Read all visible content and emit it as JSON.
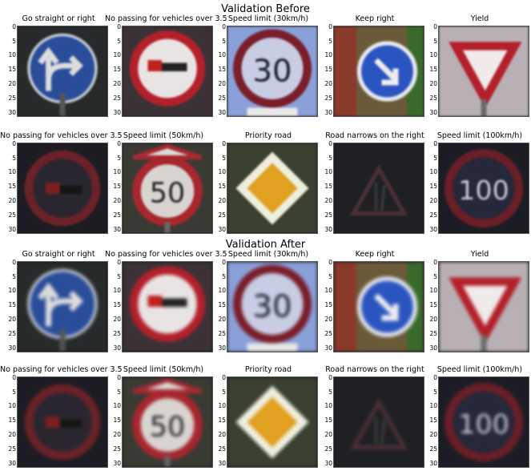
{
  "sections": [
    {
      "title": "Validation Before",
      "rows": [
        [
          "Go straight or right",
          "No passing for vehicles over 3.5",
          "Speed limit (30km/h)",
          "Keep right",
          "Yield"
        ],
        [
          "No passing for vehicles over 3.5",
          "Speed limit (50km/h)",
          "Priority road",
          "Road narrows on the right",
          "Speed limit (100km/h)"
        ]
      ]
    },
    {
      "title": "Validation After",
      "rows": [
        [
          "Go straight or right",
          "No passing for vehicles over 3.5",
          "Speed limit (30km/h)",
          "Keep right",
          "Yield"
        ],
        [
          "No passing for vehicles over 3.5",
          "Speed limit (50km/h)",
          "Priority road",
          "Road narrows on the right",
          "Speed limit (100km/h)"
        ]
      ]
    }
  ],
  "y_ticks": [
    "0",
    "5",
    "10",
    "15",
    "20",
    "25",
    "30"
  ],
  "sign_text": {
    "s30": "30",
    "s50": "50",
    "s100": "100"
  },
  "colors": {
    "sign_red": "#a8262e",
    "sign_blue": "#2a4d9a",
    "priority_yellow": "#e0a020"
  }
}
